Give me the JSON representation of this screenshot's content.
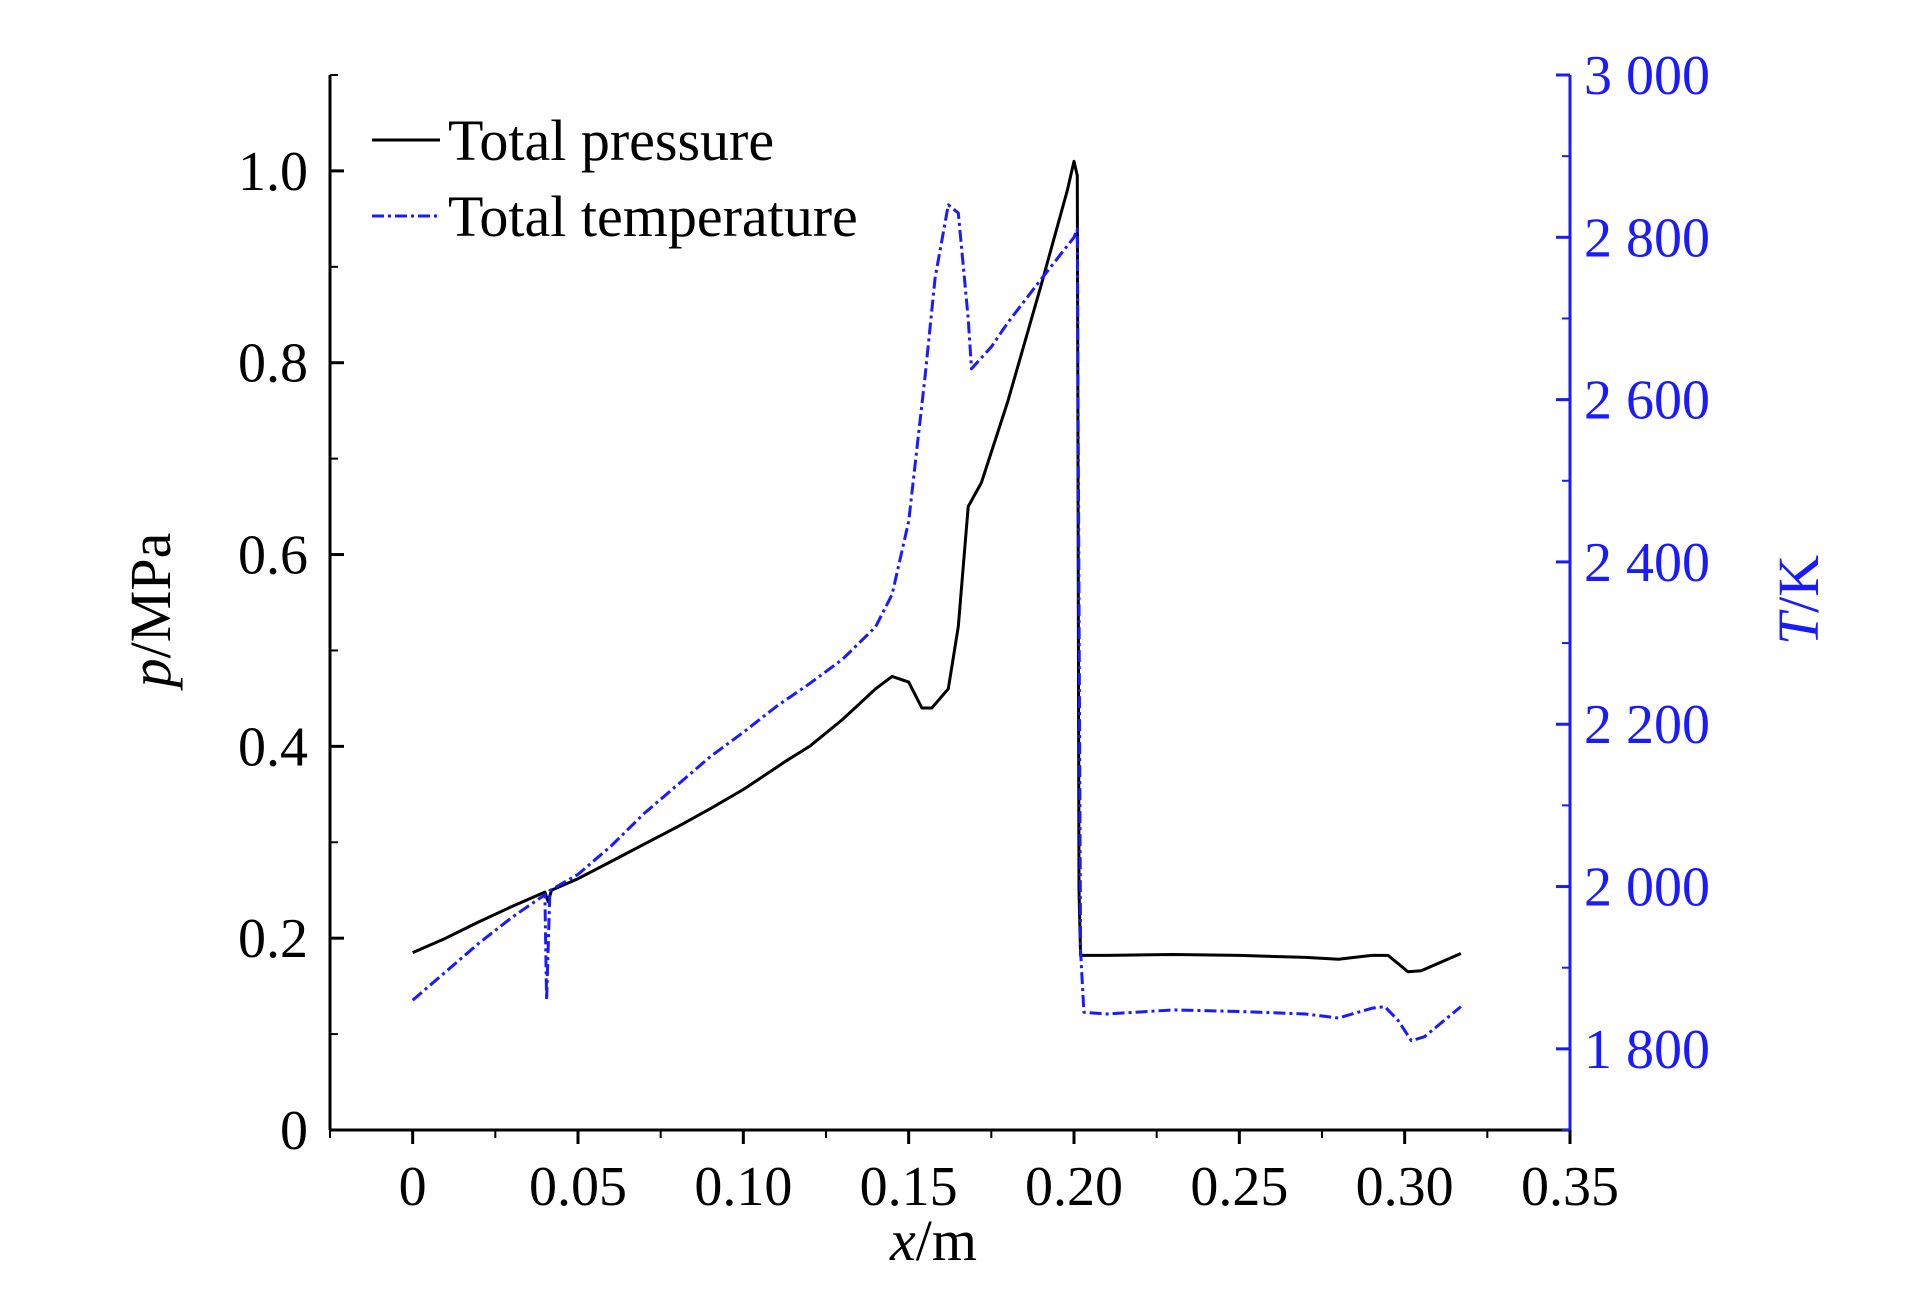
{
  "chart_data": {
    "type": "line",
    "xlabel": {
      "var": "x",
      "unit": "/m"
    },
    "ylabel_left": {
      "var": "p",
      "unit": "/MPa"
    },
    "ylabel_right": {
      "var": "T",
      "unit": "/K"
    },
    "xlim": [
      -0.025,
      0.35
    ],
    "ylim_left": [
      0,
      1.1
    ],
    "ylim_right": [
      1700,
      3000
    ],
    "x_ticks": [
      0,
      0.05,
      0.1,
      0.15,
      0.2,
      0.25,
      0.3,
      0.35
    ],
    "x_tick_labels": [
      "0",
      "0.05",
      "0.10",
      "0.15",
      "0.20",
      "0.25",
      "0.30",
      "0.35"
    ],
    "y_left_ticks": [
      0,
      0.2,
      0.4,
      0.6,
      0.8,
      1.0
    ],
    "y_left_tick_labels": [
      "0",
      "0.2",
      "0.4",
      "0.6",
      "0.8",
      "1.0"
    ],
    "y_right_ticks": [
      1800,
      2000,
      2200,
      2400,
      2600,
      2800,
      3000
    ],
    "y_right_tick_labels": [
      "1 800",
      "2 000",
      "2 200",
      "2 400",
      "2 600",
      "2 800",
      "3 000"
    ],
    "grid": false,
    "legend_position": "top-left",
    "colors": {
      "pressure": "#000000",
      "temperature": "#1a1aff",
      "right_axis": "#1a1aff"
    },
    "series": [
      {
        "name": "Total pressure",
        "axis": "left",
        "style": "solid",
        "points": [
          [
            0.0,
            0.185
          ],
          [
            0.01,
            0.2
          ],
          [
            0.02,
            0.217
          ],
          [
            0.03,
            0.233
          ],
          [
            0.04,
            0.248
          ],
          [
            0.041,
            0.238
          ],
          [
            0.042,
            0.25
          ],
          [
            0.05,
            0.262
          ],
          [
            0.06,
            0.28
          ],
          [
            0.07,
            0.298
          ],
          [
            0.08,
            0.316
          ],
          [
            0.09,
            0.335
          ],
          [
            0.1,
            0.355
          ],
          [
            0.11,
            0.378
          ],
          [
            0.113,
            0.385
          ],
          [
            0.12,
            0.4
          ],
          [
            0.13,
            0.428
          ],
          [
            0.14,
            0.46
          ],
          [
            0.145,
            0.473
          ],
          [
            0.15,
            0.467
          ],
          [
            0.154,
            0.44
          ],
          [
            0.157,
            0.44
          ],
          [
            0.162,
            0.46
          ],
          [
            0.165,
            0.525
          ],
          [
            0.168,
            0.65
          ],
          [
            0.172,
            0.675
          ],
          [
            0.18,
            0.76
          ],
          [
            0.19,
            0.88
          ],
          [
            0.198,
            0.98
          ],
          [
            0.2,
            1.01
          ],
          [
            0.201,
            0.995
          ],
          [
            0.2015,
            0.25
          ],
          [
            0.202,
            0.182
          ],
          [
            0.21,
            0.182
          ],
          [
            0.23,
            0.183
          ],
          [
            0.25,
            0.182
          ],
          [
            0.27,
            0.18
          ],
          [
            0.28,
            0.178
          ],
          [
            0.29,
            0.182
          ],
          [
            0.295,
            0.182
          ],
          [
            0.301,
            0.165
          ],
          [
            0.305,
            0.166
          ],
          [
            0.317,
            0.184
          ]
        ]
      },
      {
        "name": "Total temperature",
        "axis": "right",
        "style": "dash-dot",
        "points": [
          [
            0.0,
            1860
          ],
          [
            0.01,
            1895
          ],
          [
            0.02,
            1930
          ],
          [
            0.03,
            1962
          ],
          [
            0.04,
            1990
          ],
          [
            0.0405,
            1860
          ],
          [
            0.0415,
            1995
          ],
          [
            0.05,
            2015
          ],
          [
            0.06,
            2050
          ],
          [
            0.07,
            2090
          ],
          [
            0.08,
            2125
          ],
          [
            0.09,
            2160
          ],
          [
            0.1,
            2190
          ],
          [
            0.11,
            2222
          ],
          [
            0.12,
            2250
          ],
          [
            0.13,
            2280
          ],
          [
            0.14,
            2320
          ],
          [
            0.145,
            2360
          ],
          [
            0.15,
            2450
          ],
          [
            0.155,
            2630
          ],
          [
            0.158,
            2750
          ],
          [
            0.162,
            2840
          ],
          [
            0.165,
            2830
          ],
          [
            0.168,
            2700
          ],
          [
            0.169,
            2638
          ],
          [
            0.175,
            2665
          ],
          [
            0.18,
            2695
          ],
          [
            0.19,
            2748
          ],
          [
            0.2,
            2800
          ],
          [
            0.201,
            2810
          ],
          [
            0.202,
            1920
          ],
          [
            0.203,
            1845
          ],
          [
            0.21,
            1843
          ],
          [
            0.23,
            1848
          ],
          [
            0.25,
            1846
          ],
          [
            0.27,
            1843
          ],
          [
            0.28,
            1838
          ],
          [
            0.29,
            1850
          ],
          [
            0.294,
            1852
          ],
          [
            0.298,
            1835
          ],
          [
            0.302,
            1810
          ],
          [
            0.306,
            1815
          ],
          [
            0.317,
            1852
          ]
        ]
      }
    ]
  }
}
